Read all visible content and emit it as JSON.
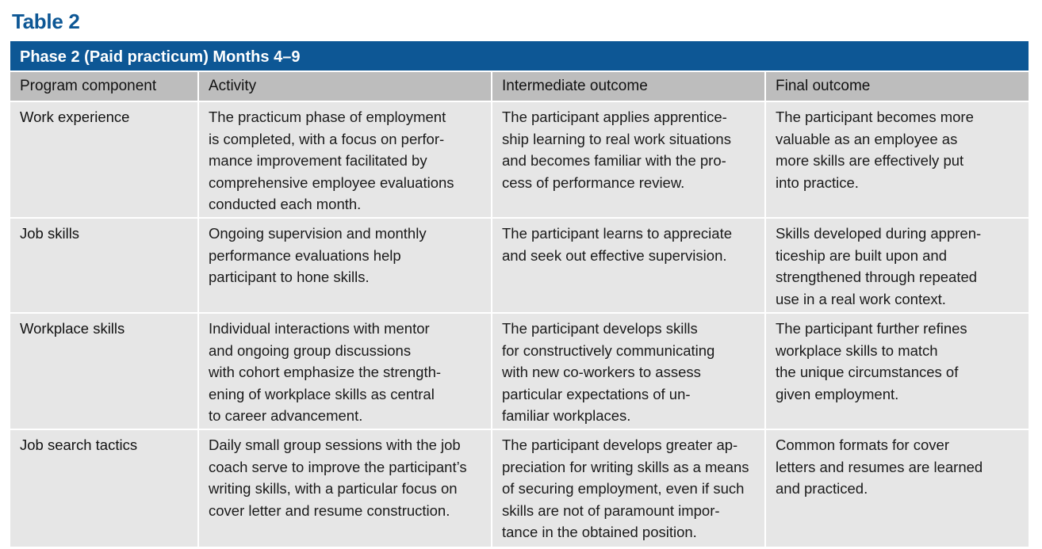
{
  "title": "Table 2",
  "phase": "Phase 2 (Paid practicum) Months 4–9",
  "headers": [
    "Program component",
    "Activity",
    "Intermediate outcome",
    "Final outcome"
  ],
  "rows": [
    {
      "component": [
        "Work experience"
      ],
      "activity": [
        "The practicum phase of employment",
        "is completed, with a focus on perfor-",
        "mance improvement facilitated by",
        "comprehensive employee evaluations",
        "conducted each month."
      ],
      "intermediate": [
        "The participant applies apprentice-",
        "ship learning to real work situations",
        "and becomes familiar with the pro-",
        "cess of performance review."
      ],
      "final": [
        "The participant becomes more",
        "valuable as an employee as",
        "more skills are effectively put",
        "into practice."
      ]
    },
    {
      "component": [
        "Job skills"
      ],
      "activity": [
        "Ongoing supervision and monthly",
        "performance evaluations help",
        "participant to hone skills."
      ],
      "intermediate": [
        "The participant learns to appreciate",
        "and seek out effective supervision."
      ],
      "final": [
        "Skills developed during appren-",
        "ticeship are built upon and",
        "strengthened through repeated",
        "use in a real work context."
      ]
    },
    {
      "component": [
        "Workplace skills"
      ],
      "activity": [
        "Individual interactions with mentor",
        "and ongoing group discussions",
        "with cohort emphasize the strength-",
        "ening of workplace skills as central",
        "to career advancement."
      ],
      "intermediate": [
        "The participant develops skills",
        "for constructively communicating",
        "with new co-workers to assess",
        "particular expectations of un-",
        "familiar workplaces."
      ],
      "final": [
        "The participant further refines",
        "workplace skills to match",
        "the unique circumstances of",
        "given employment."
      ]
    },
    {
      "component": [
        "Job search tactics"
      ],
      "activity": [
        "Daily small group sessions with the job",
        "coach serve to improve the participant’s",
        "writing skills, with a particular focus on",
        "cover letter and resume construction."
      ],
      "intermediate": [
        "The participant develops greater ap-",
        "preciation for writing skills as a means",
        "of securing employment, even if such",
        "skills are not of paramount impor-",
        "tance in the obtained position."
      ],
      "final": [
        "Common formats for cover",
        "letters and resumes are learned",
        "and practiced."
      ]
    }
  ]
}
